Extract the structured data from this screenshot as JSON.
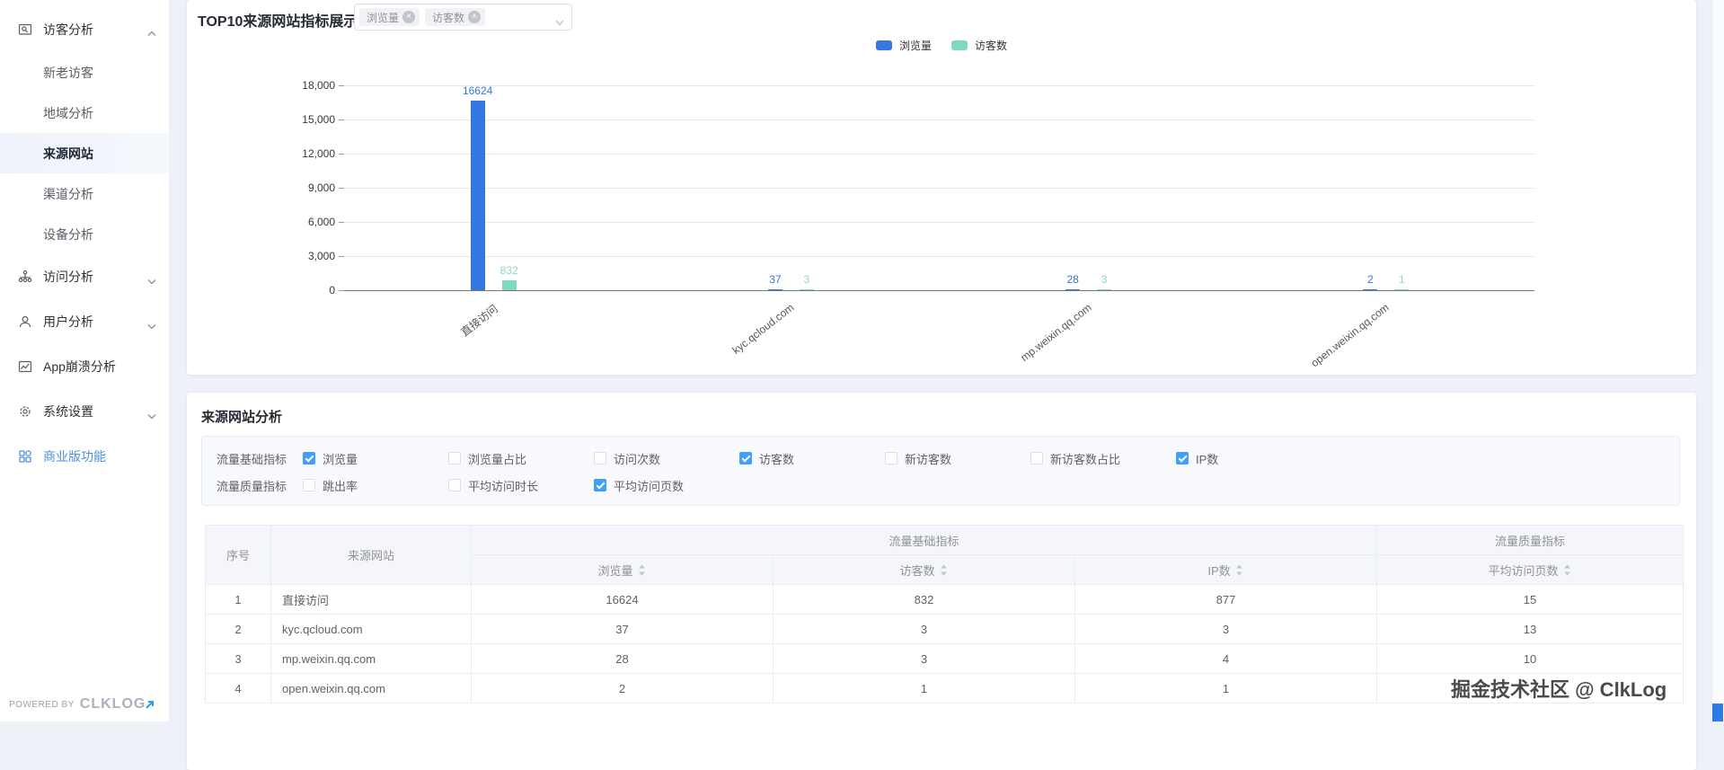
{
  "sidebar": {
    "items": [
      {
        "name": "visitor-analysis",
        "label": "访客分析",
        "type": "group",
        "icon": "visitor",
        "chevron": "up"
      },
      {
        "name": "new-old-visitors",
        "label": "新老访客",
        "type": "sub"
      },
      {
        "name": "region-analysis",
        "label": "地域分析",
        "type": "sub"
      },
      {
        "name": "source-website",
        "label": "来源网站",
        "type": "sub",
        "active": true
      },
      {
        "name": "channel-analysis",
        "label": "渠道分析",
        "type": "sub"
      },
      {
        "name": "device-analysis",
        "label": "设备分析",
        "type": "sub"
      },
      {
        "name": "visit-analysis",
        "label": "访问分析",
        "type": "group",
        "icon": "sitemap",
        "chevron": "down"
      },
      {
        "name": "user-analysis",
        "label": "用户分析",
        "type": "group",
        "icon": "user",
        "chevron": "down"
      },
      {
        "name": "app-crash-analysis",
        "label": "App崩溃分析",
        "type": "group",
        "icon": "crash"
      },
      {
        "name": "system-settings",
        "label": "系统设置",
        "type": "group",
        "icon": "gear",
        "chevron": "down"
      },
      {
        "name": "business-features",
        "label": "商业版功能",
        "type": "group",
        "icon": "grid",
        "highlight": true
      }
    ],
    "powered_by": "POWERED BY",
    "brand": "CLKLOG"
  },
  "chart_card": {
    "title": "TOP10来源网站指标展示",
    "metric_select": {
      "tags": [
        "浏览量",
        "访客数"
      ]
    }
  },
  "chart_data": {
    "type": "bar",
    "title": "TOP10来源网站指标展示",
    "categories": [
      "直接访问",
      "kyc.qcloud.com",
      "mp.weixin.qq.com",
      "open.weixin.qq.com"
    ],
    "series": [
      {
        "name": "浏览量",
        "color": "#3577e0",
        "label_color": "#3577e0",
        "values": [
          16624,
          37,
          28,
          2
        ]
      },
      {
        "name": "访客数",
        "color": "#7fd8c0",
        "label_color": "#8bd9c3",
        "values": [
          832,
          3,
          3,
          1
        ]
      }
    ],
    "ylim": [
      0,
      18000
    ],
    "ytick_interval": 3000,
    "grid": true,
    "legend_position": "top-center"
  },
  "analysis_card": {
    "title": "来源网站分析",
    "filter_rows": [
      {
        "label": "流量基础指标",
        "options": [
          {
            "label": "浏览量",
            "checked": true
          },
          {
            "label": "浏览量占比",
            "checked": false
          },
          {
            "label": "访问次数",
            "checked": false
          },
          {
            "label": "访客数",
            "checked": true
          },
          {
            "label": "新访客数",
            "checked": false
          },
          {
            "label": "新访客数占比",
            "checked": false
          },
          {
            "label": "IP数",
            "checked": true
          }
        ]
      },
      {
        "label": "流量质量指标",
        "options": [
          {
            "label": "跳出率",
            "checked": false
          },
          {
            "label": "平均访问时长",
            "checked": false
          },
          {
            "label": "平均访问页数",
            "checked": true
          }
        ]
      }
    ],
    "table": {
      "corner_headers": [
        "序号",
        "来源网站"
      ],
      "group_headers": [
        "流量基础指标",
        "流量质量指标"
      ],
      "metric_headers": [
        "浏览量",
        "访客数",
        "IP数",
        "平均访问页数"
      ],
      "rows": [
        [
          "1",
          "直接访问",
          "16624",
          "832",
          "877",
          "15"
        ],
        [
          "2",
          "kyc.qcloud.com",
          "37",
          "3",
          "3",
          "13"
        ],
        [
          "3",
          "mp.weixin.qq.com",
          "28",
          "3",
          "4",
          "10"
        ],
        [
          "4",
          "open.weixin.qq.com",
          "2",
          "1",
          "1",
          ""
        ]
      ]
    }
  },
  "watermark": "掘金技术社区 @ ClkLog"
}
